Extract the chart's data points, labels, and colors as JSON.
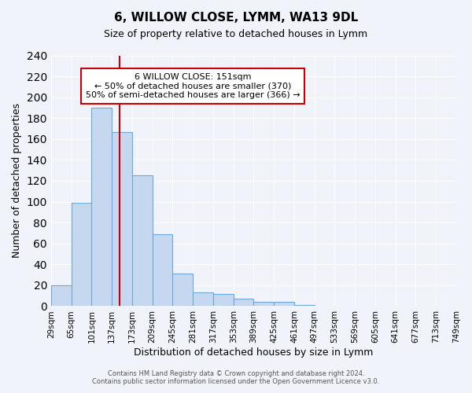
{
  "title": "6, WILLOW CLOSE, LYMM, WA13 9DL",
  "subtitle": "Size of property relative to detached houses in Lymm",
  "xlabel": "Distribution of detached houses by size in Lymm",
  "ylabel": "Number of detached properties",
  "bar_values": [
    20,
    99,
    190,
    167,
    125,
    69,
    31,
    13,
    12,
    7,
    4,
    4,
    1
  ],
  "bin_edges": [
    29,
    65,
    101,
    137,
    173,
    209,
    245,
    281,
    317,
    353,
    389,
    425,
    461,
    497
  ],
  "x_tick_labels": [
    "29sqm",
    "65sqm",
    "101sqm",
    "137sqm",
    "173sqm",
    "209sqm",
    "245sqm",
    "281sqm",
    "317sqm",
    "353sqm",
    "389sqm",
    "425sqm",
    "461sqm",
    "497sqm",
    "533sqm",
    "569sqm",
    "605sqm",
    "641sqm",
    "677sqm",
    "713sqm",
    "749sqm"
  ],
  "bar_color": "#c5d8f0",
  "bar_edge_color": "#6fa8d6",
  "vline_x": 151,
  "vline_color": "#cc0000",
  "ylim": [
    0,
    240
  ],
  "yticks": [
    0,
    20,
    40,
    60,
    80,
    100,
    120,
    140,
    160,
    180,
    200,
    220,
    240
  ],
  "annotation_title": "6 WILLOW CLOSE: 151sqm",
  "annotation_line1": "← 50% of detached houses are smaller (370)",
  "annotation_line2": "50% of semi-detached houses are larger (366) →",
  "annotation_box_color": "#ffffff",
  "annotation_box_edge": "#cc0000",
  "footer1": "Contains HM Land Registry data © Crown copyright and database right 2024.",
  "footer2": "Contains public sector information licensed under the Open Government Licence v3.0.",
  "bg_color": "#f0f4fa",
  "grid_color": "#ffffff"
}
